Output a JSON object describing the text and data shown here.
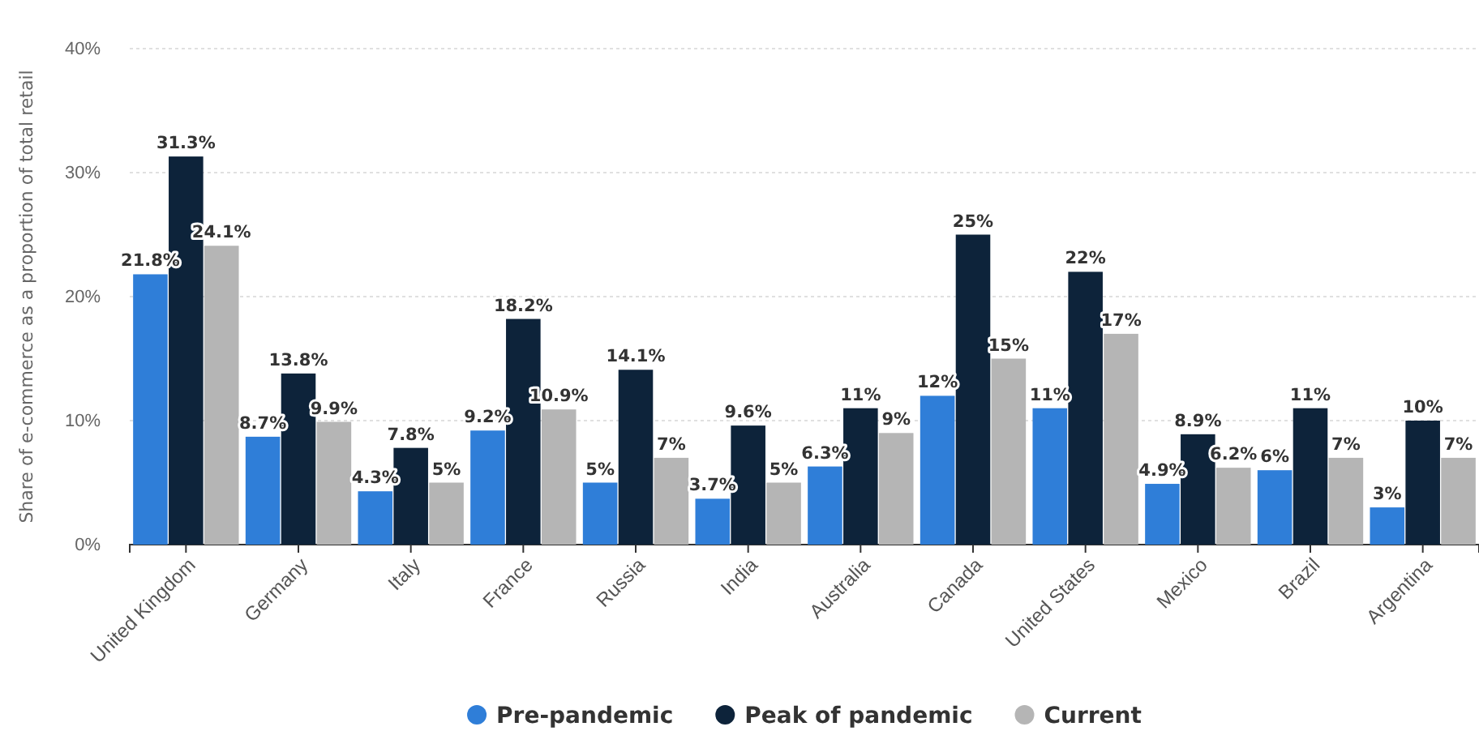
{
  "chart_data": {
    "type": "bar",
    "ylabel": "Share of e-commerce as a proportion of total retail",
    "categories": [
      "United Kingdom",
      "Germany",
      "Italy",
      "France",
      "Russia",
      "India",
      "Australia",
      "Canada",
      "United States",
      "Mexico",
      "Brazil",
      "Argentina"
    ],
    "series": [
      {
        "name": "Pre-pandemic",
        "color": "#2f7ed8",
        "values": [
          21.8,
          8.7,
          4.3,
          9.2,
          5,
          3.7,
          6.3,
          12,
          11,
          4.9,
          6,
          3
        ],
        "value_labels": [
          "21.8%",
          "8.7%",
          "4.3%",
          "9.2%",
          "5%",
          "3.7%",
          "6.3%",
          "12%",
          "11%",
          "4.9%",
          "6%",
          "3%"
        ]
      },
      {
        "name": "Peak of pandemic",
        "color": "#0d233a",
        "values": [
          31.3,
          13.8,
          7.8,
          18.2,
          14.1,
          9.6,
          11,
          25,
          22,
          8.9,
          11,
          10
        ],
        "value_labels": [
          "31.3%",
          "13.8%",
          "7.8%",
          "18.2%",
          "14.1%",
          "9.6%",
          "11%",
          "25%",
          "22%",
          "8.9%",
          "11%",
          "10%"
        ]
      },
      {
        "name": "Current",
        "color": "#b5b5b5",
        "values": [
          24.1,
          9.9,
          5,
          10.9,
          7,
          5,
          9,
          15,
          17,
          6.2,
          7,
          7
        ],
        "value_labels": [
          "24.1%",
          "9.9%",
          "5%",
          "10.9%",
          "7%",
          "5%",
          "9%",
          "15%",
          "17%",
          "6.2%",
          "7%",
          "7%"
        ]
      }
    ],
    "ylim": [
      0,
      40
    ],
    "yticks": [
      {
        "value": 0,
        "label": "0%"
      },
      {
        "value": 10,
        "label": "10%"
      },
      {
        "value": 20,
        "label": "20%"
      },
      {
        "value": 30,
        "label": "30%"
      },
      {
        "value": 40,
        "label": "40%"
      }
    ],
    "grid": "y",
    "legend": "bottom"
  }
}
